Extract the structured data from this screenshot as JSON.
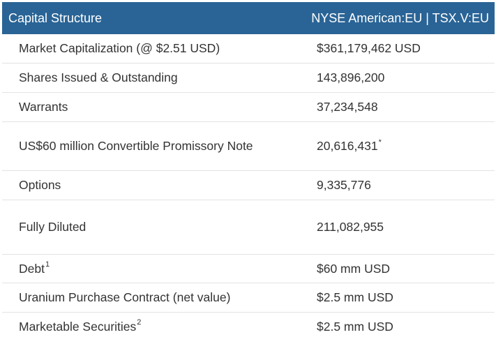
{
  "header": {
    "title": "Capital Structure",
    "exchange": "NYSE American:EU | TSX.V:EU"
  },
  "colors": {
    "header_bg": "#2a6496",
    "header_text": "#ffffff"
  },
  "rows": [
    {
      "label": "Market Capitalization (@ $2.51 USD)",
      "value": "$361,179,462 USD"
    },
    {
      "label": "Shares Issued & Outstanding",
      "value": "143,896,200"
    },
    {
      "label": "Warrants",
      "value": "37,234,548"
    },
    {
      "label": "US$60 million Convertible Promissory Note",
      "value": "20,616,431",
      "value_sup": "*"
    },
    {
      "label": "Options",
      "value": "9,335,776"
    },
    {
      "label": "Fully Diluted",
      "value": "211,082,955"
    },
    {
      "label": "Debt",
      "label_sup": "1",
      "value": "$60 mm USD"
    },
    {
      "label": "Uranium Purchase Contract (net value)",
      "value": "$2.5 mm USD"
    },
    {
      "label": "Marketable Securities",
      "label_sup": "2",
      "value": "$2.5 mm USD"
    }
  ]
}
